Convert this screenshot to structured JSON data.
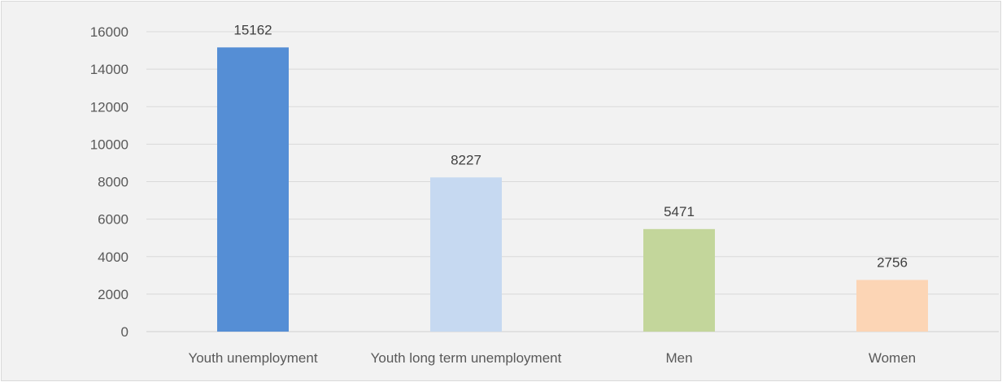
{
  "chart_data": {
    "type": "bar",
    "title": "",
    "xlabel": "",
    "ylabel": "",
    "categories": [
      "Youth unemployment",
      "Youth long term unemployment",
      "Men",
      "Women"
    ],
    "values": [
      15162,
      8227,
      5471,
      2756
    ],
    "data_labels": [
      "15162",
      "8227",
      "5471",
      "2756"
    ],
    "bar_colors": [
      "#558ed5",
      "#c6d9f1",
      "#c3d69b",
      "#fcd5b5"
    ],
    "ylim": [
      0,
      16000
    ],
    "yticks": [
      0,
      2000,
      4000,
      6000,
      8000,
      10000,
      12000,
      14000,
      16000
    ],
    "grid": true,
    "legend": "none"
  }
}
